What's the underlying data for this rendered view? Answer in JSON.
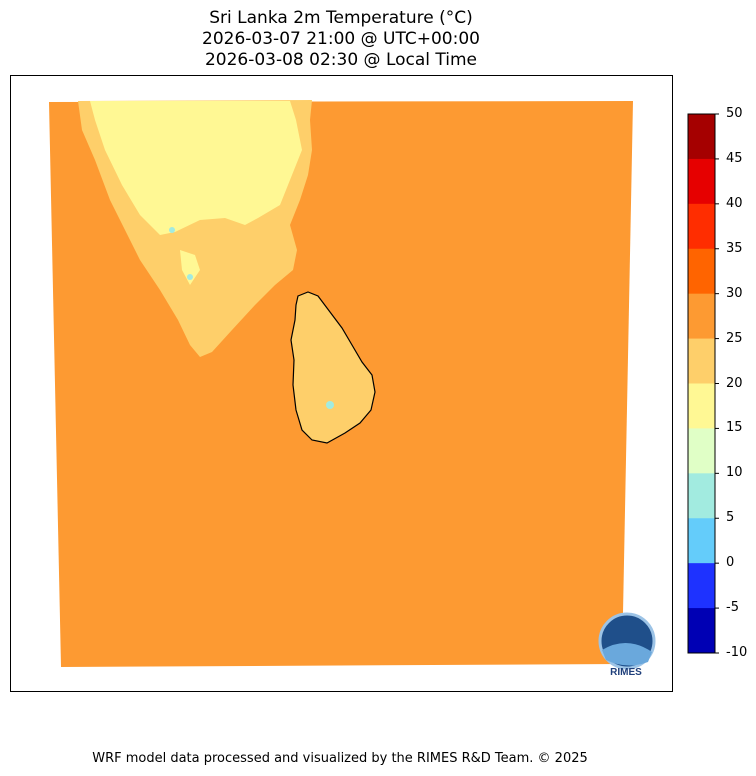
{
  "title": {
    "line1": "Sri Lanka 2m Temperature (°C)",
    "line2": "2026-03-07 21:00 @ UTC+00:00",
    "line3": "2026-03-08 02:30 @ Local Time"
  },
  "colorbar": {
    "ticks": [
      "50",
      "45",
      "40",
      "35",
      "30",
      "25",
      "20",
      "15",
      "10",
      "5",
      "0",
      "-5",
      "-10"
    ],
    "colors": [
      "#a50000",
      "#e60000",
      "#ff2d00",
      "#ff6400",
      "#fd9a32",
      "#fecf6a",
      "#fff894",
      "#e0ffc6",
      "#a2ebe0",
      "#64ccfa",
      "#1e32ff",
      "#0000b4"
    ]
  },
  "map_colors": {
    "ocean": "#fd9a32",
    "land": "#fecf6a",
    "cool": "#fff894",
    "cold": "#a2ebe0"
  },
  "logo": {
    "text": "RIMES"
  },
  "footer": "WRF model data processed and visualized by the RIMES R&D Team. © 2025"
}
